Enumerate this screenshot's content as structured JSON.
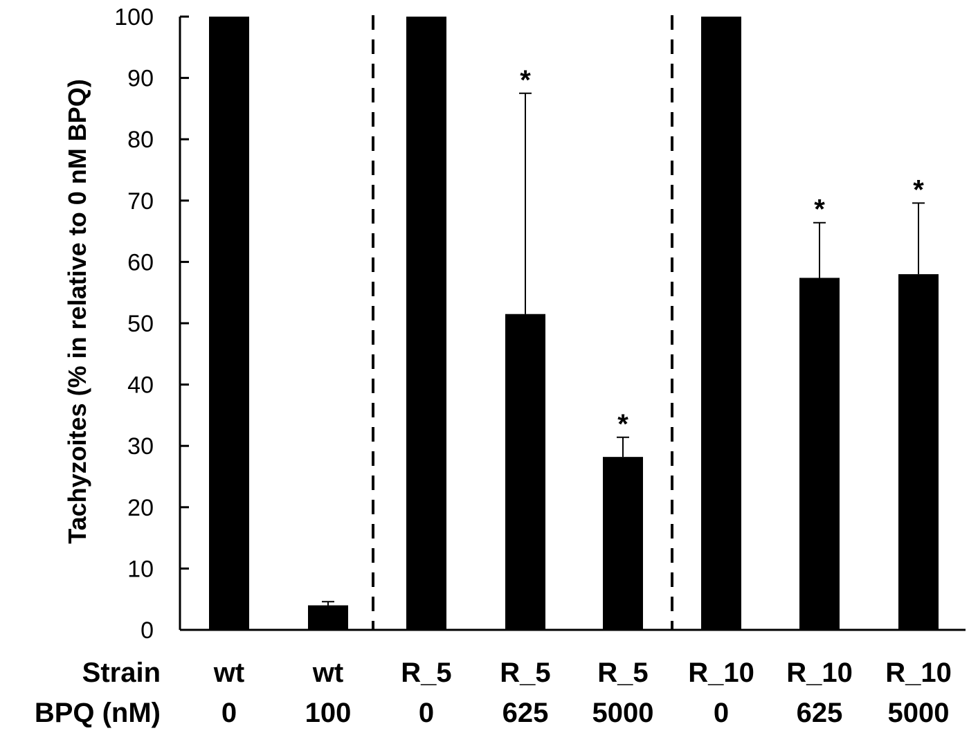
{
  "chart_data": {
    "type": "bar",
    "title": "",
    "xlabel": "",
    "ylabel": "Tachyzoites (% in relative to 0 nM BPQ)",
    "ylim": [
      0,
      100
    ],
    "yticks": [
      0,
      10,
      20,
      30,
      40,
      50,
      60,
      70,
      80,
      90,
      100
    ],
    "grid": false,
    "legend": null,
    "row_labels": {
      "strain": "Strain",
      "bpq": "BPQ (nM)"
    },
    "categories": [
      "wt 0",
      "wt 100",
      "R_5 0",
      "R_5 625",
      "R_5 5000",
      "R_10 0",
      "R_10 625",
      "R_10 5000"
    ],
    "strain": [
      "wt",
      "wt",
      "R_5",
      "R_5",
      "R_5",
      "R_10",
      "R_10",
      "R_10"
    ],
    "bpq_nM": [
      "0",
      "100",
      "0",
      "625",
      "5000",
      "0",
      "625",
      "5000"
    ],
    "values": [
      100,
      4.0,
      100,
      51.5,
      28.2,
      100,
      57.4,
      58.0
    ],
    "error_upper": [
      null,
      4.6,
      null,
      87.5,
      31.4,
      null,
      66.4,
      69.6
    ],
    "significance": [
      "",
      "",
      "",
      "*",
      "*",
      "",
      "*",
      "*"
    ],
    "group_separators": "dashed vertical lines between wt, R_5 and R_10 groups",
    "bar_color": "#000000"
  }
}
